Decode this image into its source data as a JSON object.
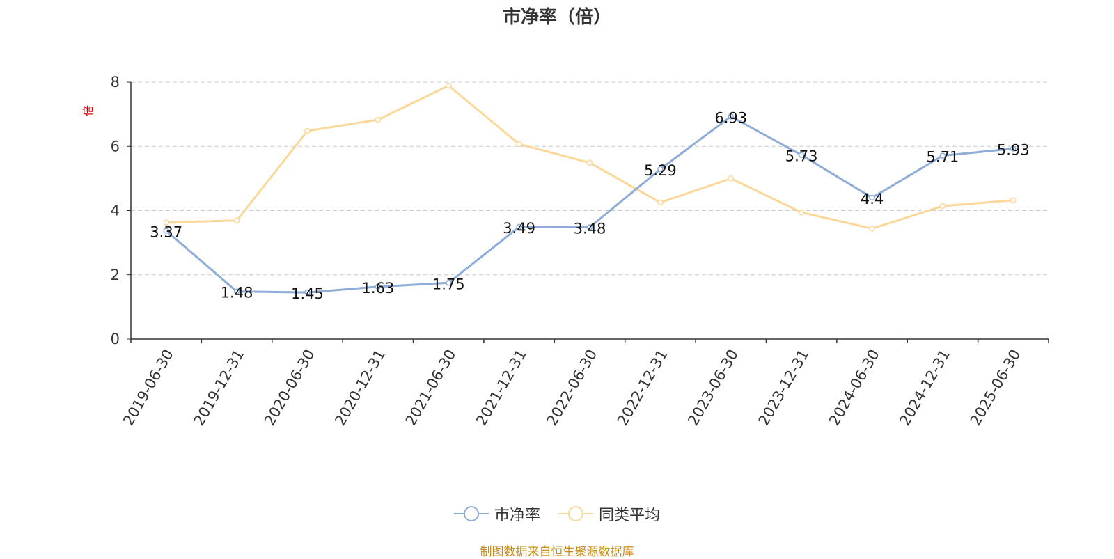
{
  "chart_data": {
    "type": "line",
    "title": "市净率（倍）",
    "ylabel": "倍",
    "ylim": [
      0,
      8
    ],
    "yticks": [
      0,
      2,
      4,
      6,
      8
    ],
    "grid": true,
    "legend_position": "bottom-center",
    "categories": [
      "2019-06-30",
      "2019-12-31",
      "2020-06-30",
      "2020-12-31",
      "2021-06-30",
      "2021-12-31",
      "2022-06-30",
      "2022-12-31",
      "2023-06-30",
      "2023-12-31",
      "2024-06-30",
      "2024-12-31",
      "2025-06-30"
    ],
    "series": [
      {
        "name": "市净率",
        "color": "#8eacd8",
        "values": [
          3.37,
          1.48,
          1.45,
          1.63,
          1.75,
          3.49,
          3.48,
          5.29,
          6.93,
          5.73,
          4.4,
          5.71,
          5.93
        ],
        "labels": [
          "3.37",
          "1.48",
          "1.45",
          "1.63",
          "1.75",
          "3.49",
          "3.48",
          "5.29",
          "6.93",
          "5.73",
          "4.4",
          "5.71",
          "5.93"
        ]
      },
      {
        "name": "同类平均",
        "color": "#fbd89a",
        "values": [
          3.63,
          3.69,
          6.48,
          6.83,
          7.89,
          6.07,
          5.49,
          4.25,
          5.0,
          3.94,
          3.44,
          4.14,
          4.32
        ]
      }
    ]
  },
  "source_text": "制图数据来自恒生聚源数据库",
  "colors": {
    "ylabel": "#e8000b",
    "source": "#c8901c",
    "axis": "#333333",
    "grid": "#cccccc"
  }
}
